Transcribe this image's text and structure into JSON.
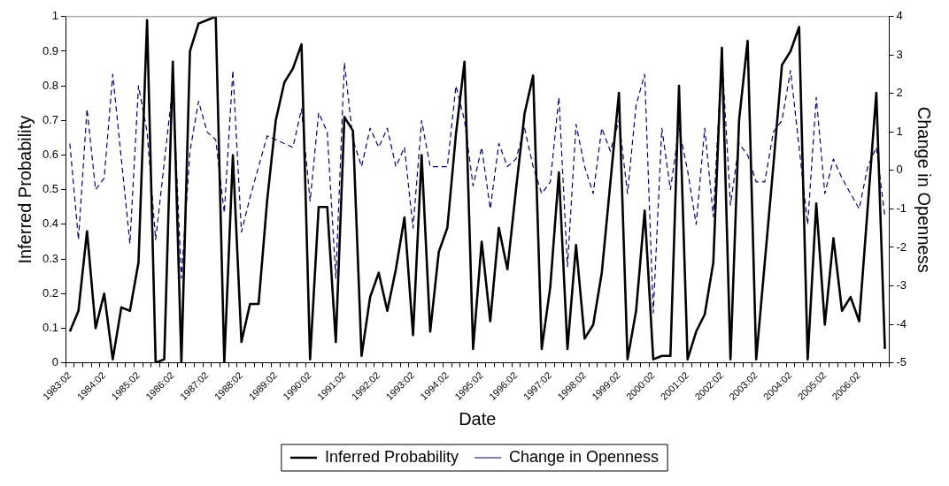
{
  "chart_data": {
    "type": "line",
    "xlabel": "Date",
    "ylabel": "Inferred Probability",
    "y2label": "Change in Openness",
    "categories": [
      "1983:02",
      null,
      null,
      null,
      "1984:02",
      null,
      null,
      null,
      "1985:02",
      null,
      null,
      null,
      "1986:02",
      null,
      null,
      null,
      "1987:02",
      null,
      null,
      null,
      "1988:02",
      null,
      null,
      null,
      "1989:02",
      null,
      null,
      null,
      "1990:02",
      null,
      null,
      null,
      "1991:02",
      null,
      null,
      null,
      "1992:02",
      null,
      null,
      null,
      "1993:02",
      null,
      null,
      null,
      "1994:02",
      null,
      null,
      null,
      "1995:02",
      null,
      null,
      null,
      "1996:02",
      null,
      null,
      null,
      "1997:02",
      null,
      null,
      null,
      "1998:02",
      null,
      null,
      null,
      "1999:02",
      null,
      null,
      null,
      "2000:02",
      null,
      null,
      null,
      "2001:02",
      null,
      null,
      null,
      "2002:02",
      null,
      null,
      null,
      "2003:02",
      null,
      null,
      null,
      "2004:02",
      null,
      null,
      null,
      "2005:02",
      null,
      null,
      null,
      "2006:02",
      null,
      null,
      null
    ],
    "series": [
      {
        "name": "Inferred Probability",
        "color": "#000000",
        "line_style": "solid",
        "values": [
          0.09,
          0.15,
          0.38,
          0.1,
          0.2,
          0.01,
          0.16,
          0.15,
          0.29,
          0.99,
          0.0,
          0.01,
          0.87,
          0.0,
          0.9,
          0.98,
          0.99,
          1.0,
          0.0,
          0.6,
          0.06,
          0.17,
          0.17,
          0.47,
          0.7,
          0.81,
          0.85,
          0.92,
          0.01,
          0.45,
          0.45,
          0.06,
          0.71,
          0.67,
          0.02,
          0.19,
          0.26,
          0.15,
          0.27,
          0.42,
          0.08,
          0.6,
          0.09,
          0.32,
          0.39,
          0.66,
          0.87,
          0.04,
          0.35,
          0.12,
          0.39,
          0.27,
          0.5,
          0.72,
          0.83,
          0.04,
          0.22,
          0.55,
          0.04,
          0.34,
          0.07,
          0.11,
          0.26,
          0.52,
          0.78,
          0.01,
          0.15,
          0.44,
          0.01,
          0.02,
          0.02,
          0.8,
          0.01,
          0.09,
          0.14,
          0.29,
          0.91,
          0.01,
          0.7,
          0.93,
          0.01,
          0.29,
          0.57,
          0.86,
          0.9,
          0.97,
          0.01,
          0.46,
          0.11,
          0.36,
          0.15,
          0.19,
          0.12,
          0.45,
          0.78,
          0.04
        ]
      },
      {
        "name": "Change in Openness",
        "color": "#000080",
        "line_style": "dashed",
        "axis": "y2",
        "values": [
          0.7,
          -1.8,
          1.6,
          -0.5,
          -0.2,
          2.5,
          0.3,
          -1.9,
          2.2,
          1.0,
          -1.8,
          0.2,
          2.2,
          -2.8,
          0.5,
          1.8,
          1.0,
          0.8,
          -1.1,
          2.6,
          -1.6,
          -0.7,
          0.1,
          0.9,
          0.8,
          0.7,
          0.6,
          1.6,
          -0.8,
          1.5,
          1.0,
          -2.8,
          2.8,
          0.8,
          0.1,
          1.1,
          0.6,
          1.1,
          0.1,
          0.6,
          -1.5,
          1.3,
          0.1,
          0.1,
          0.1,
          2.2,
          1.3,
          -0.4,
          0.6,
          -1.0,
          0.7,
          0.1,
          0.3,
          1.1,
          0.1,
          -0.6,
          -0.3,
          1.9,
          -2.5,
          1.2,
          0.1,
          -0.6,
          1.1,
          0.5,
          1.3,
          -0.6,
          1.7,
          2.5,
          -3.7,
          1.1,
          -0.5,
          1.1,
          0.0,
          -1.4,
          1.1,
          -1.2,
          3.0,
          -0.9,
          0.7,
          0.4,
          -0.3,
          -0.3,
          1.0,
          1.3,
          2.6,
          0.6,
          -1.4,
          1.9,
          -0.6,
          0.3,
          -0.2,
          -0.6,
          -1.0,
          0.1,
          0.6,
          -1.2
        ]
      }
    ],
    "ylim": [
      0,
      1
    ],
    "yticks": [
      0,
      0.1,
      0.2,
      0.3,
      0.4,
      0.5,
      0.6,
      0.7,
      0.8,
      0.9,
      1
    ],
    "y2lim": [
      -5,
      4
    ],
    "y2ticks": [
      -5,
      -4,
      -3,
      -2,
      -1,
      0,
      1,
      2,
      3,
      4
    ],
    "grid": false,
    "legend": "bottom",
    "marker": "none"
  }
}
